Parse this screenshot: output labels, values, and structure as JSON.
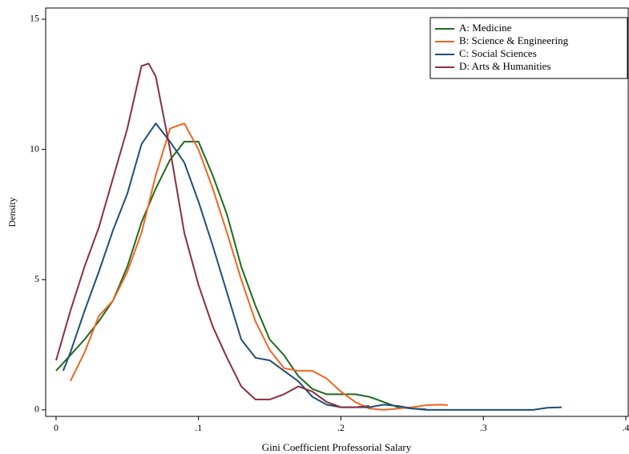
{
  "chart_data": {
    "type": "line",
    "xlabel": "Gini Coefficient Professorial Salary",
    "ylabel": "Density",
    "xlim": [
      -0.0073,
      0.4017
    ],
    "ylim": [
      -0.25,
      15.43
    ],
    "xticks": [
      {
        "value": 0,
        "label": "0"
      },
      {
        "value": 0.1,
        "label": ".1"
      },
      {
        "value": 0.2,
        "label": ".2"
      },
      {
        "value": 0.3,
        "label": ".3"
      },
      {
        "value": 0.4,
        "label": ".4"
      }
    ],
    "yticks": [
      0,
      5,
      10,
      15
    ],
    "legend": "top-right",
    "series": [
      {
        "name": "A: Medicine",
        "color": "#1e6b1e",
        "x": [
          0,
          0.01,
          0.02,
          0.03,
          0.04,
          0.05,
          0.06,
          0.07,
          0.08,
          0.09,
          0.1,
          0.11,
          0.12,
          0.13,
          0.14,
          0.15,
          0.16,
          0.17,
          0.18,
          0.19,
          0.2,
          0.21,
          0.22,
          0.23,
          0.24,
          0.25,
          0.26
        ],
        "values": [
          1.5,
          2.1,
          2.7,
          3.4,
          4.2,
          5.5,
          7.2,
          8.5,
          9.6,
          10.3,
          10.3,
          9.0,
          7.5,
          5.5,
          4.0,
          2.7,
          2.1,
          1.3,
          0.8,
          0.6,
          0.6,
          0.6,
          0.5,
          0.3,
          0.1,
          0.05,
          0.02
        ]
      },
      {
        "name": "B: Science & Engineering",
        "color": "#f26522",
        "x": [
          0.01,
          0.02,
          0.03,
          0.04,
          0.05,
          0.06,
          0.07,
          0.08,
          0.09,
          0.1,
          0.11,
          0.12,
          0.13,
          0.14,
          0.15,
          0.16,
          0.17,
          0.18,
          0.19,
          0.2,
          0.21,
          0.22,
          0.23,
          0.24,
          0.25,
          0.26,
          0.27,
          0.275
        ],
        "values": [
          1.1,
          2.2,
          3.6,
          4.2,
          5.3,
          6.8,
          9.0,
          10.8,
          11.0,
          10.0,
          8.5,
          6.8,
          5.0,
          3.4,
          2.3,
          1.6,
          1.5,
          1.5,
          1.2,
          0.7,
          0.3,
          0.05,
          0,
          0.05,
          0.1,
          0.18,
          0.2,
          0.18
        ]
      },
      {
        "name": "C: Social Sciences",
        "color": "#1f4e79",
        "x": [
          0.005,
          0.01,
          0.02,
          0.03,
          0.04,
          0.05,
          0.06,
          0.07,
          0.08,
          0.09,
          0.1,
          0.11,
          0.12,
          0.13,
          0.14,
          0.15,
          0.16,
          0.17,
          0.18,
          0.19,
          0.2,
          0.21,
          0.22,
          0.23,
          0.24,
          0.25,
          0.26,
          0.3,
          0.335,
          0.345,
          0.355
        ],
        "values": [
          1.5,
          2.2,
          3.8,
          5.3,
          6.9,
          8.3,
          10.2,
          11.0,
          10.3,
          9.5,
          8.0,
          6.3,
          4.5,
          2.7,
          2.0,
          1.9,
          1.5,
          1.1,
          0.5,
          0.2,
          0.1,
          0.1,
          0.1,
          0.2,
          0.15,
          0.05,
          0,
          0,
          0,
          0.08,
          0.1
        ]
      },
      {
        "name": "D: Arts & Humanities",
        "color": "#8b2f3f",
        "x": [
          0,
          0.01,
          0.02,
          0.03,
          0.04,
          0.05,
          0.06,
          0.065,
          0.07,
          0.08,
          0.09,
          0.1,
          0.11,
          0.12,
          0.13,
          0.14,
          0.15,
          0.16,
          0.17,
          0.18,
          0.19,
          0.2,
          0.21,
          0.22
        ],
        "values": [
          1.9,
          3.8,
          5.5,
          7.0,
          8.9,
          10.8,
          13.2,
          13.3,
          12.8,
          10.0,
          6.8,
          4.8,
          3.2,
          2.0,
          0.9,
          0.4,
          0.4,
          0.6,
          0.9,
          0.7,
          0.3,
          0.1,
          0.1,
          0.15
        ]
      }
    ]
  }
}
